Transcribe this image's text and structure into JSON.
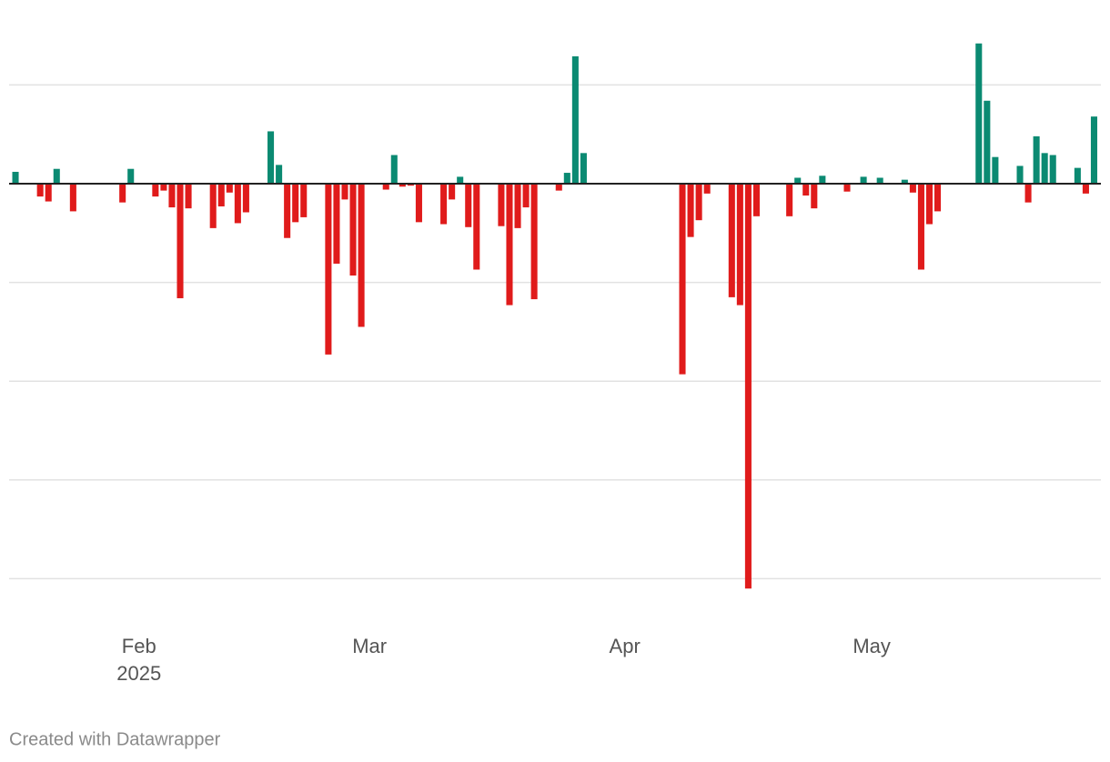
{
  "chart_data": {
    "type": "bar",
    "x": [
      0,
      3,
      4,
      5,
      7,
      13,
      14,
      17,
      18,
      19,
      20,
      21,
      24,
      25,
      26,
      27,
      28,
      31,
      32,
      33,
      34,
      35,
      38,
      39,
      40,
      41,
      42,
      45,
      46,
      47,
      48,
      49,
      52,
      53,
      54,
      55,
      56,
      59,
      60,
      61,
      62,
      63,
      66,
      67,
      68,
      69,
      81,
      82,
      83,
      84,
      87,
      88,
      89,
      90,
      94,
      95,
      96,
      97,
      98,
      101,
      103,
      105,
      108,
      109,
      110,
      111,
      112,
      117,
      118,
      119,
      122,
      123,
      124,
      125,
      126,
      129,
      130,
      131
    ],
    "values": [
      0.12,
      -0.13,
      -0.18,
      0.15,
      -0.28,
      -0.19,
      0.15,
      -0.13,
      -0.07,
      -0.24,
      -1.16,
      -0.25,
      -0.45,
      -0.23,
      -0.09,
      -0.4,
      -0.29,
      0.53,
      0.19,
      -0.55,
      -0.39,
      -0.34,
      -1.73,
      -0.81,
      -0.16,
      -0.93,
      -1.45,
      -0.06,
      0.29,
      -0.03,
      -0.02,
      -0.39,
      -0.41,
      -0.16,
      0.07,
      -0.44,
      -0.87,
      -0.43,
      -1.23,
      -0.45,
      -0.24,
      -1.17,
      -0.07,
      0.11,
      1.29,
      0.31,
      -1.93,
      -0.54,
      -0.37,
      -0.1,
      -1.15,
      -1.23,
      -4.1,
      -0.33,
      -0.33,
      0.06,
      -0.12,
      -0.25,
      0.08,
      -0.08,
      0.07,
      0.06,
      0.04,
      -0.09,
      -0.87,
      -0.41,
      -0.28,
      1.42,
      0.84,
      0.27,
      0.18,
      -0.19,
      0.48,
      0.31,
      0.29,
      0.16,
      -0.1,
      0.68
    ],
    "positive_color": "#0b8a72",
    "negative_color": "#e01b1b",
    "xlim": [
      -0.5,
      131.5
    ],
    "xticks": [
      {
        "value": 15,
        "label": "Feb"
      },
      {
        "value": 43,
        "label": "Mar"
      },
      {
        "value": 74,
        "label": "Apr"
      },
      {
        "value": 104,
        "label": "May"
      }
    ],
    "year_label": "2025",
    "ylim": [
      -4.5,
      1.5
    ],
    "yticks": [
      -4,
      -3,
      -2,
      -1,
      0,
      1
    ],
    "grid": true,
    "credit": "Created with Datawrapper"
  }
}
